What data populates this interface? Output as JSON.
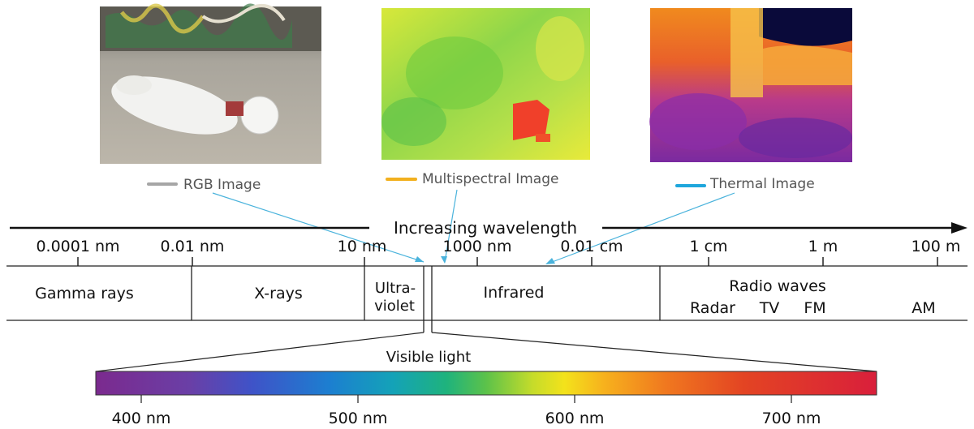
{
  "images": [
    {
      "label": "RGB Image",
      "legend_color": "#a6a6a6"
    },
    {
      "label": "Multispectral Image",
      "legend_color": "#f2b01e"
    },
    {
      "label": "Thermal Image",
      "legend_color": "#1ea6dc"
    }
  ],
  "axis": {
    "title": "Increasing wavelength",
    "ticks": [
      "0.0001 nm",
      "0.01 nm",
      "10 nm",
      "1000 nm",
      "0.01 cm",
      "1 cm",
      "1 m",
      "100 m"
    ]
  },
  "bands": {
    "gamma": "Gamma rays",
    "xray": "X-rays",
    "uv_line1": "Ultra-",
    "uv_line2": "violet",
    "infrared": "Infrared",
    "radio": "Radio waves",
    "radar": "Radar",
    "tv": "TV",
    "fm": "FM",
    "am": "AM"
  },
  "visible": {
    "title": "Visible light",
    "ticks": [
      "400 nm",
      "500 nm",
      "600 nm",
      "700 nm"
    ]
  },
  "colors": {
    "arrow_line": "#4ab3dc",
    "axis": "#111111"
  }
}
